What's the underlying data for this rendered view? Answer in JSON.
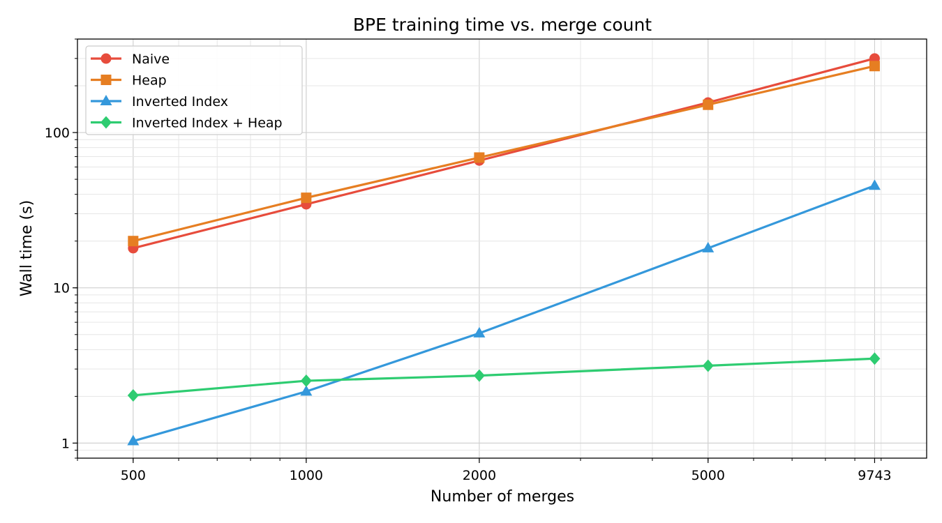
{
  "chart_data": {
    "type": "line",
    "title": "BPE training time vs. merge count",
    "xlabel": "Number of merges",
    "ylabel": "Wall time (s)",
    "xscale": "log",
    "yscale": "log",
    "x": [
      500,
      1000,
      2000,
      5000,
      9743
    ],
    "xticks": [
      "500",
      "1000",
      "2000",
      "5000",
      "9743"
    ],
    "yticks": [
      "1",
      "10",
      "100"
    ],
    "xlim": [
      400,
      12000
    ],
    "ylim": [
      0.8,
      400
    ],
    "grid": true,
    "legend_position": "top-left",
    "series": [
      {
        "name": "Naive",
        "color": "#e74c3c",
        "marker": "circle",
        "values": [
          18,
          34.5,
          66,
          156,
          300
        ]
      },
      {
        "name": "Heap",
        "color": "#e67e22",
        "marker": "square",
        "values": [
          20,
          38,
          69,
          151,
          268
        ]
      },
      {
        "name": "Inverted Index",
        "color": "#3498db",
        "marker": "triangle",
        "values": [
          1.03,
          2.15,
          5.1,
          18,
          45.5
        ]
      },
      {
        "name": "Inverted Index + Heap",
        "color": "#2ecc71",
        "marker": "diamond",
        "values": [
          2.03,
          2.52,
          2.72,
          3.15,
          3.5
        ]
      }
    ]
  }
}
